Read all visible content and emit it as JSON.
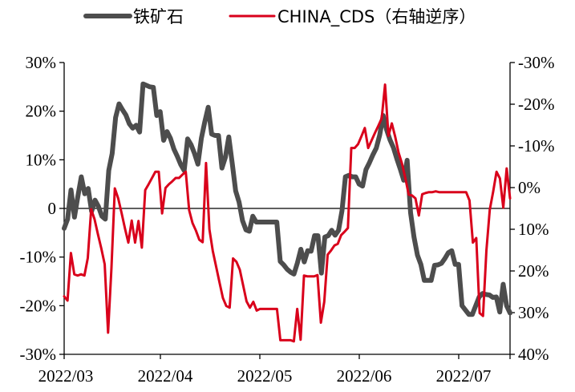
{
  "chart_data": {
    "type": "line",
    "legend_position": "top",
    "grid": false,
    "x_tick_labels": [
      "2022/03",
      "2022/04",
      "2022/05",
      "2022/06",
      "2022/07"
    ],
    "y_left": {
      "range": [
        -30,
        30
      ],
      "ticks": [
        30,
        20,
        10,
        0,
        -10,
        -20,
        -30
      ],
      "tick_labels": [
        "30%",
        "20%",
        "10%",
        "0",
        "-10%",
        "-20%",
        "-30%"
      ]
    },
    "y_right": {
      "range": [
        -30,
        40
      ],
      "reversed": true,
      "ticks": [
        -30,
        -20,
        -10,
        0,
        10,
        20,
        30,
        40
      ],
      "tick_labels": [
        "-30%",
        "-20%",
        "-10%",
        "0%",
        "10%",
        "20%",
        "30%",
        "40%"
      ]
    },
    "series": [
      {
        "name": "铁矿石",
        "axis": "left",
        "color": "#4d4d4d",
        "values": [
          -4.1,
          -2.2,
          3.8,
          -1.8,
          2.5,
          6.5,
          3.0,
          4.1,
          -0.6,
          1.7,
          0.4,
          -1.6,
          -2.2,
          7.8,
          11.3,
          18.7,
          21.5,
          20.3,
          19.2,
          17.4,
          16.5,
          17.1,
          15.7,
          25.6,
          25.3,
          25.0,
          24.9,
          19.1,
          19.9,
          14.0,
          15.8,
          14.4,
          12.2,
          10.7,
          9.0,
          7.8,
          14.3,
          13.1,
          11.3,
          9.1,
          14.4,
          17.8,
          20.8,
          15.3,
          15.0,
          15.0,
          8.3,
          10.5,
          14.7,
          9.3,
          3.6,
          1.3,
          -2.5,
          -4.4,
          -4.7,
          -1.6,
          -2.8,
          -2.8,
          -2.8,
          -2.8,
          -2.8,
          -2.8,
          -2.8,
          -10.9,
          -11.6,
          -12.5,
          -13.1,
          -13.5,
          -11.2,
          -8.4,
          -11.0,
          -8.7,
          -8.8,
          -5.6,
          -5.6,
          -13.3,
          -5.9,
          -5.6,
          -4.5,
          -5.5,
          -4.5,
          -0.5,
          6.5,
          6.8,
          6.5,
          6.5,
          5.0,
          4.6,
          8.0,
          9.4,
          11.0,
          12.4,
          15.1,
          19.1,
          16.2,
          14.1,
          12.5,
          10.2,
          8.1,
          5.8,
          9.9,
          -0.9,
          -5.9,
          -9.6,
          -11.5,
          -14.8,
          -14.8,
          -14.8,
          -11.7,
          -11.6,
          -11.3,
          -10.3,
          -9.1,
          -8.7,
          -11.5,
          -11.5,
          -20.0,
          -20.9,
          -21.8,
          -21.8,
          -20.0,
          -18.2,
          -17.5,
          -17.7,
          -17.8,
          -18.3,
          -18.2,
          -21.3,
          -15.6,
          -20.0,
          -21.5
        ]
      },
      {
        "name": "CHINA_CDS（右轴逆序）",
        "axis": "right",
        "color": "#d9001b",
        "values": [
          26.1,
          27.1,
          15.7,
          20.8,
          21.1,
          20.8,
          21.1,
          16.9,
          5.2,
          7.6,
          11.2,
          14.6,
          18.4,
          34.8,
          19.3,
          0.2,
          2.6,
          6.1,
          9.8,
          13.2,
          7.9,
          13.2,
          8.0,
          14.4,
          0.6,
          -0.8,
          -2.3,
          -3.8,
          -3.8,
          6.2,
          0.1,
          -0.8,
          -1.5,
          -2.3,
          -2.3,
          -3.1,
          -3.8,
          5.4,
          8.5,
          10.3,
          12.5,
          13.1,
          -5.9,
          10.0,
          15.2,
          19.0,
          22.8,
          26.5,
          28.4,
          28.8,
          17.0,
          17.8,
          19.7,
          23.5,
          27.3,
          28.8,
          27.4,
          29.5,
          29.1,
          29.1,
          29.1,
          29.1,
          29.1,
          29.1,
          36.6,
          36.6,
          36.6,
          36.6,
          36.9,
          29.1,
          36.5,
          21.1,
          21.3,
          21.3,
          21.3,
          21.0,
          32.4,
          27.4,
          16.1,
          15.1,
          13.9,
          13.5,
          11.4,
          10.6,
          9.7,
          -9.5,
          -9.5,
          -10.4,
          -12.3,
          -14.3,
          -9.5,
          -11.3,
          -13.1,
          -14.8,
          -16.6,
          -24.7,
          -12.4,
          -15.4,
          -12.2,
          -8.4,
          -5.8,
          -2.3,
          1.7,
          1.9,
          2.6,
          6.7,
          1.6,
          1.3,
          1.1,
          1.1,
          0.9,
          1.1,
          1.1,
          1.1,
          1.1,
          1.1,
          1.1,
          1.1,
          1.1,
          1.1,
          3.1,
          13.2,
          12.1,
          30.1,
          30.8,
          15.1,
          5.3,
          1.0,
          -3.8,
          -2.2,
          4.8,
          -4.6,
          2.6
        ]
      }
    ]
  }
}
